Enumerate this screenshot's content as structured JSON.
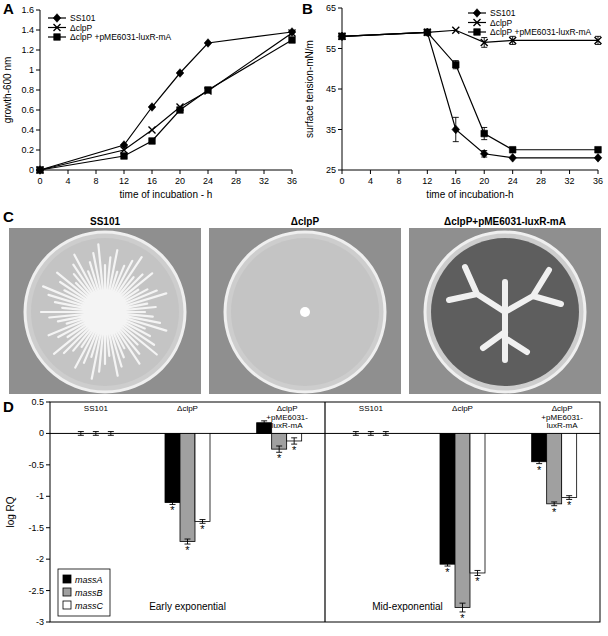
{
  "chart_data": [
    {
      "type": "line",
      "title": "A",
      "x_label": "time of incubation - h",
      "y_label": "growth-600 nm",
      "x": [
        0,
        12,
        16,
        20,
        24,
        36
      ],
      "series": [
        {
          "name": "SS101",
          "color": "#000000",
          "marker": "diamond",
          "values": [
            0,
            0.25,
            0.63,
            0.97,
            1.27,
            1.38
          ]
        },
        {
          "name": "ΔclpP",
          "color": "#000000",
          "marker": "x",
          "values": [
            0,
            0.2,
            0.4,
            0.63,
            0.79,
            1.37
          ]
        },
        {
          "name": "ΔclpP +pME6031-luxR-mA",
          "color": "#000000",
          "marker": "square",
          "values": [
            0,
            0.14,
            0.29,
            0.6,
            0.8,
            1.3
          ]
        }
      ],
      "xlim": [
        0,
        36
      ],
      "xticks": [
        0,
        4,
        8,
        12,
        16,
        20,
        24,
        28,
        32,
        36
      ],
      "ylim": [
        0,
        1.6
      ],
      "yticks": [
        0,
        0.2,
        0.4,
        0.6,
        0.8,
        1,
        1.2,
        1.4,
        1.6
      ],
      "legend": "top-left"
    },
    {
      "type": "line",
      "title": "B",
      "x_label": "time of incubation-h",
      "y_label": "surface tension-mN/m",
      "x": [
        0,
        12,
        16,
        20,
        24,
        36
      ],
      "series": [
        {
          "name": "SS101",
          "color": "#000000",
          "marker": "diamond",
          "values": [
            58,
            59,
            35,
            29,
            28,
            28
          ],
          "errors": [
            null,
            null,
            3,
            0.8,
            null,
            null
          ]
        },
        {
          "name": "ΔclpP",
          "color": "#000000",
          "marker": "x",
          "values": [
            58,
            59,
            59.5,
            56.5,
            57,
            57
          ],
          "errors": [
            null,
            null,
            null,
            1.2,
            1,
            1
          ]
        },
        {
          "name": "ΔclpP +pME6031-luxR-mA",
          "color": "#000000",
          "marker": "square",
          "values": [
            58,
            59,
            51,
            34,
            30,
            30
          ],
          "errors": [
            null,
            null,
            1,
            1.5,
            null,
            null
          ]
        }
      ],
      "xlim": [
        0,
        36
      ],
      "xticks": [
        0,
        4,
        8,
        12,
        16,
        20,
        24,
        28,
        32,
        36
      ],
      "ylim": [
        25,
        65
      ],
      "yticks": [
        25,
        35,
        45,
        55,
        65
      ],
      "legend": "top-right"
    },
    {
      "type": "image",
      "title": "C",
      "labels": [
        "SS101",
        "ΔclpP",
        "ΔclpP+pME6031-luxR-mA"
      ]
    },
    {
      "type": "bar",
      "title": "D",
      "y_label": "log RQ",
      "categories": [
        "SS101",
        "ΔclpP",
        "ΔclpP+pME6031-luxR-mA",
        "SS101",
        "ΔclpP",
        "ΔclpP+pME6031-luxR-mA"
      ],
      "group_labels": [
        "Early exponential",
        "Mid-exponential"
      ],
      "series": [
        {
          "name": "massA",
          "color": "#000000",
          "values": [
            0,
            -1.1,
            0.17,
            0,
            -2.08,
            -0.45
          ],
          "errors": [
            0.03,
            0.03,
            0.03,
            0.03,
            0.03,
            0.03
          ]
        },
        {
          "name": "massB",
          "color": "#a0a0a0",
          "values": [
            0,
            -1.72,
            -0.25,
            0,
            -2.77,
            -1.12
          ],
          "errors": [
            0.03,
            0.04,
            0.05,
            0.03,
            0.07,
            0.03
          ]
        },
        {
          "name": "massC",
          "color": "#ffffff",
          "values": [
            0,
            -1.4,
            -0.12,
            0,
            -2.22,
            -1.02
          ],
          "errors": [
            0.03,
            0.03,
            0.05,
            0.03,
            0.04,
            0.03
          ]
        }
      ],
      "ylim": [
        -3,
        0.5
      ],
      "yticks": [
        -3,
        -2.5,
        -2,
        -1.5,
        -1,
        -0.5,
        0,
        0.5
      ],
      "legend": "bottom-left",
      "annotations": [
        {
          "text": "*",
          "series": 0,
          "index": 1
        },
        {
          "text": "*",
          "series": 1,
          "index": 1
        },
        {
          "text": "*",
          "series": 2,
          "index": 1
        },
        {
          "text": "*",
          "series": 1,
          "index": 2
        },
        {
          "text": "*",
          "series": 2,
          "index": 2
        },
        {
          "text": "*",
          "series": 0,
          "index": 4
        },
        {
          "text": "*",
          "series": 1,
          "index": 4
        },
        {
          "text": "*",
          "series": 2,
          "index": 4
        },
        {
          "text": "*",
          "series": 0,
          "index": 5
        },
        {
          "text": "*",
          "series": 1,
          "index": 5
        },
        {
          "text": "*",
          "series": 2,
          "index": 5
        }
      ]
    }
  ]
}
